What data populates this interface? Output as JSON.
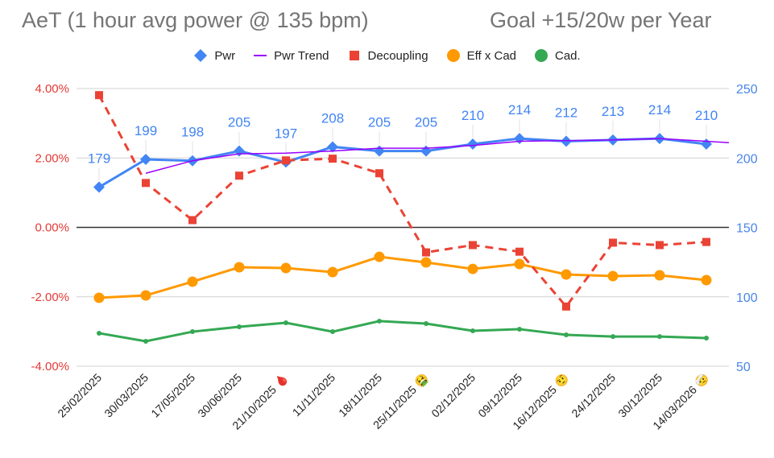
{
  "title": "AeT (1 hour avg power @ 135 bpm)",
  "subtitle": "Goal +15/20w per Year",
  "chart_data": {
    "type": "line",
    "title": "AeT (1 hour avg power @ 135 bpm)",
    "subtitle": "Goal +15/20w per Year",
    "categories": [
      "25/02/2025",
      "30/03/2025",
      "17/05/2025",
      "30/06/2025",
      "21/10/2025 🩸",
      "11/11/2025",
      "18/11/2025",
      "25/11/2025 🤮",
      "02/12/2025",
      "09/12/2025",
      "16/12/2025 🤨",
      "24/12/2025",
      "30/12/2025",
      "14/03/2026 🤕"
    ],
    "left_axis": {
      "ticks": [
        "4.00%",
        "2.00%",
        "0.00%",
        "-2.00%",
        "-4.00%"
      ],
      "range": [
        -4,
        4
      ],
      "color": "#e53935"
    },
    "right_axis": {
      "ticks": [
        "250",
        "200",
        "150",
        "100",
        "50"
      ],
      "range": [
        50,
        250
      ],
      "color": "#4a86e8"
    },
    "legend_position": "top",
    "series": [
      {
        "name": "Pwr",
        "axis": "right",
        "color": "#4285f4",
        "marker": "diamond",
        "values": [
          179,
          199,
          198,
          205,
          197,
          208,
          205,
          205,
          210,
          214,
          212,
          213,
          214,
          210
        ],
        "labels": [
          "179",
          "199",
          "198",
          "205",
          "197",
          "208",
          "205",
          "205",
          "210",
          "214",
          "212",
          "213",
          "214",
          "210"
        ]
      },
      {
        "name": "Pwr Trend",
        "axis": "right",
        "color": "#9900ff",
        "marker": "none",
        "values": [
          null,
          189,
          198,
          203,
          203.5,
          205,
          207,
          207,
          209,
          212,
          212.5,
          213,
          214,
          212
        ],
        "extend_to": 211
      },
      {
        "name": "Decoupling",
        "axis": "left",
        "color": "#ea4335",
        "marker": "square",
        "dashed": true,
        "values": [
          3.81,
          1.28,
          0.21,
          1.49,
          1.93,
          1.98,
          1.56,
          -0.72,
          -0.51,
          -0.7,
          -2.28,
          -0.44,
          -0.51,
          -0.42
        ]
      },
      {
        "name": "Eff x Cad",
        "axis": "right",
        "color": "#ff9900",
        "marker": "circle",
        "values": [
          99.3,
          101,
          110.9,
          121.3,
          120.7,
          117.8,
          128.8,
          124.8,
          120.1,
          123.6,
          116.1,
          114.9,
          115.5,
          112
        ]
      },
      {
        "name": "Cad.",
        "axis": "right",
        "color": "#34a853",
        "marker": "dot",
        "values": [
          73.8,
          68,
          74.9,
          78.4,
          81.3,
          74.9,
          82.5,
          80.7,
          75.5,
          76.7,
          72.6,
          71.4,
          71.4,
          70.3
        ]
      }
    ]
  }
}
